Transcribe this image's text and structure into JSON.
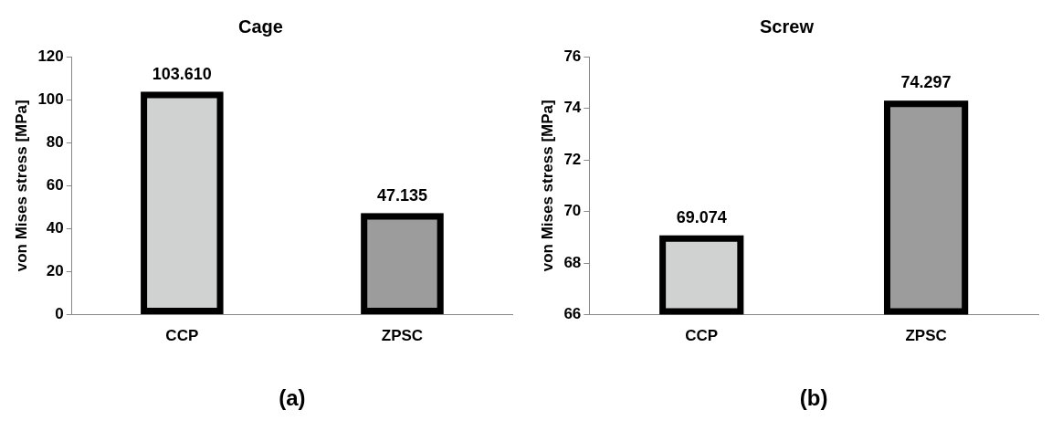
{
  "chart_data": [
    {
      "type": "bar",
      "title": "Cage",
      "ylabel": "von Mises stress [MPa]",
      "categories": [
        "CCP",
        "ZPSC"
      ],
      "values": [
        103.61,
        47.135
      ],
      "value_labels": [
        "103.610",
        "47.135"
      ],
      "colors": [
        "#d0d2d1",
        "#9c9c9c"
      ],
      "ylim": [
        0,
        120
      ],
      "yticks": [
        0,
        20,
        40,
        60,
        80,
        100,
        120
      ],
      "grid": false,
      "legend": false,
      "annotations": [
        "(a)"
      ]
    },
    {
      "type": "bar",
      "title": "Screw",
      "ylabel": "von Mises stress [MPa]",
      "categories": [
        "CCP",
        "ZPSC"
      ],
      "values": [
        69.074,
        74.297
      ],
      "value_labels": [
        "69.074",
        "74.297"
      ],
      "colors": [
        "#d0d2d1",
        "#9c9c9c"
      ],
      "ylim": [
        66,
        76
      ],
      "yticks": [
        66,
        68,
        70,
        72,
        74,
        76
      ],
      "grid": false,
      "legend": false,
      "annotations": [
        "(b)"
      ]
    }
  ]
}
